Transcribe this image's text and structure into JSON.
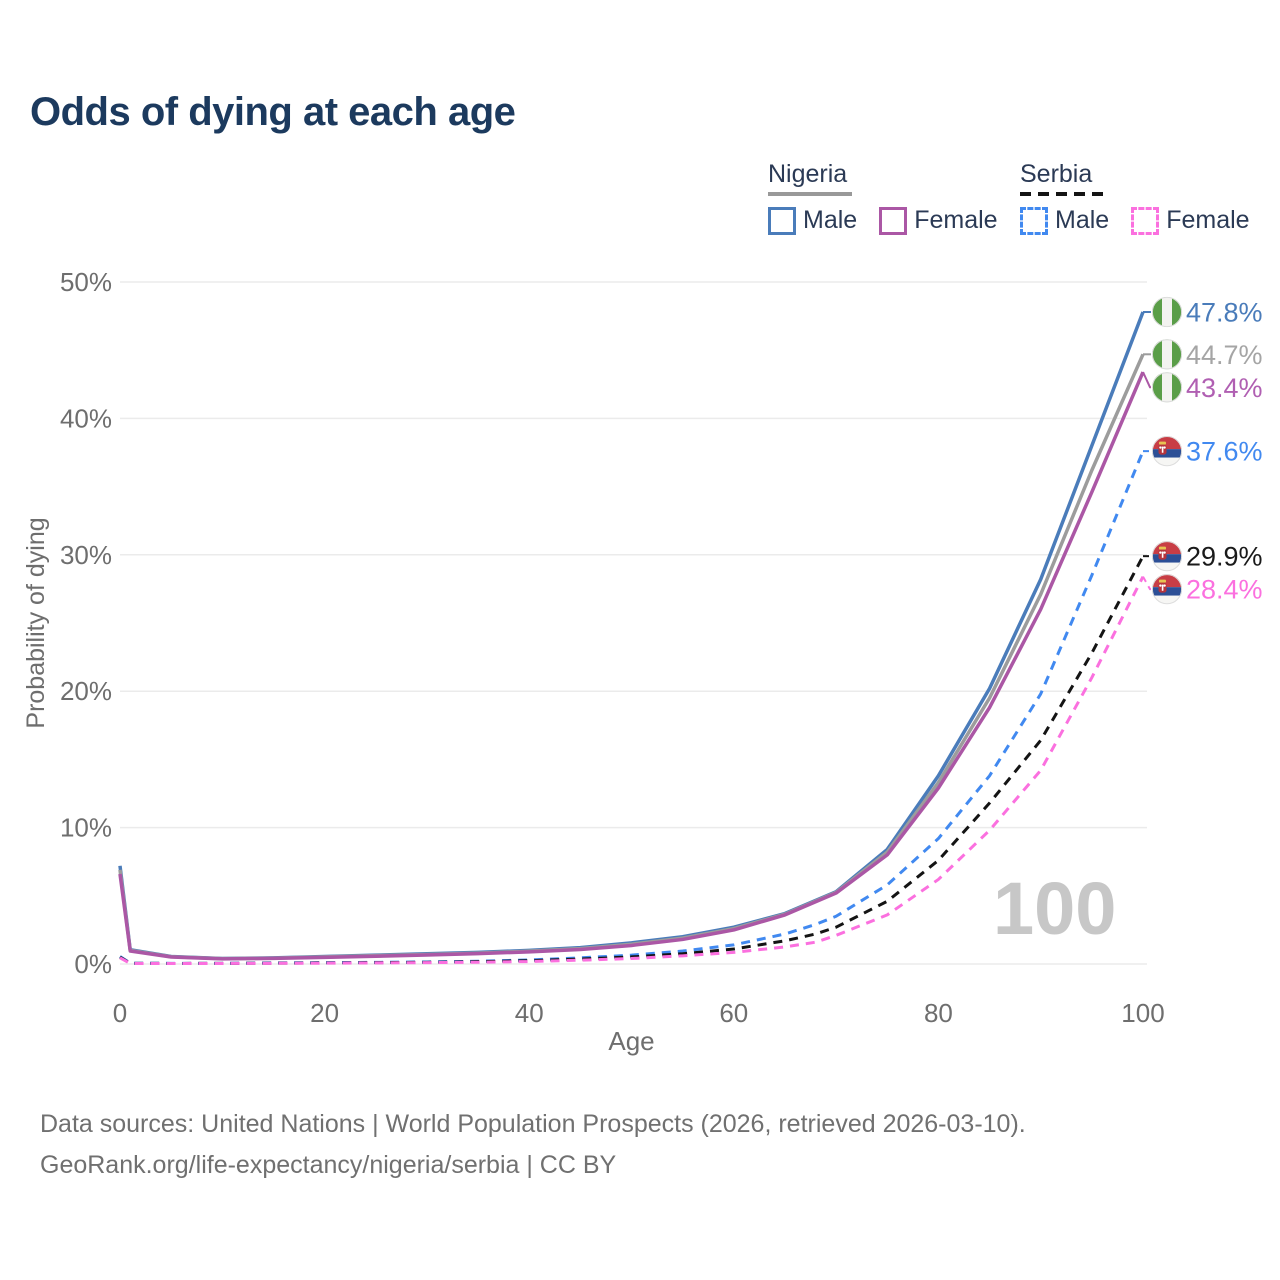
{
  "title": "Odds of dying at each age",
  "watermark_age": "100",
  "legend": {
    "groups": [
      {
        "label": "Nigeria",
        "line_style": "solid",
        "swatch_color": "#999999",
        "items": [
          {
            "label": "Male",
            "color": "#4a7cba",
            "dashed": false
          },
          {
            "label": "Female",
            "color": "#ab57a5",
            "dashed": false
          }
        ]
      },
      {
        "label": "Serbia",
        "line_style": "dashed",
        "swatch_color": "#141414",
        "items": [
          {
            "label": "Male",
            "color": "#4189f0",
            "dashed": true
          },
          {
            "label": "Female",
            "color": "#fb70df",
            "dashed": true
          }
        ]
      }
    ]
  },
  "chart_data": {
    "type": "line",
    "title": "Odds of dying at each age",
    "xlabel": "Age",
    "ylabel": "Probability of dying",
    "xlim": [
      0,
      100
    ],
    "ylim": [
      0,
      50
    ],
    "grid": true,
    "legend_position": "top-right",
    "x_ticks": [
      "0",
      "20",
      "40",
      "60",
      "80",
      "100"
    ],
    "y_ticks": [
      "0%",
      "10%",
      "20%",
      "30%",
      "40%",
      "50%"
    ],
    "series": [
      {
        "name": "Nigeria Male",
        "country": "nigeria",
        "sex": "male",
        "color": "#4a7cba",
        "label_color": "#4a7cba",
        "dashed": false,
        "end_label": "47.8%",
        "points": [
          [
            0,
            7.2
          ],
          [
            1,
            1.05
          ],
          [
            5,
            0.55
          ],
          [
            10,
            0.4
          ],
          [
            15,
            0.45
          ],
          [
            20,
            0.55
          ],
          [
            25,
            0.65
          ],
          [
            30,
            0.75
          ],
          [
            35,
            0.85
          ],
          [
            40,
            1.0
          ],
          [
            45,
            1.2
          ],
          [
            50,
            1.55
          ],
          [
            55,
            2.0
          ],
          [
            60,
            2.7
          ],
          [
            65,
            3.7
          ],
          [
            70,
            5.3
          ],
          [
            75,
            8.4
          ],
          [
            80,
            13.8
          ],
          [
            85,
            20.2
          ],
          [
            90,
            28.2
          ],
          [
            95,
            38.0
          ],
          [
            100,
            47.8
          ]
        ]
      },
      {
        "name": "Nigeria Both sexes",
        "country": "nigeria",
        "sex": "both",
        "color": "#9c9c9c",
        "label_color": "#a5a5a5",
        "dashed": false,
        "end_label": "44.7%",
        "points": [
          [
            0,
            6.9
          ],
          [
            1,
            1.0
          ],
          [
            5,
            0.53
          ],
          [
            10,
            0.39
          ],
          [
            15,
            0.43
          ],
          [
            20,
            0.52
          ],
          [
            25,
            0.61
          ],
          [
            30,
            0.7
          ],
          [
            35,
            0.8
          ],
          [
            40,
            0.94
          ],
          [
            45,
            1.13
          ],
          [
            50,
            1.45
          ],
          [
            55,
            1.9
          ],
          [
            60,
            2.6
          ],
          [
            65,
            3.65
          ],
          [
            70,
            5.25
          ],
          [
            75,
            8.2
          ],
          [
            80,
            13.3
          ],
          [
            85,
            19.5
          ],
          [
            90,
            27.1
          ],
          [
            95,
            36.2
          ],
          [
            100,
            44.7
          ]
        ]
      },
      {
        "name": "Nigeria Female",
        "country": "nigeria",
        "sex": "female",
        "color": "#ab57a5",
        "label_color": "#b05fb2",
        "dashed": false,
        "end_label": "43.4%",
        "points": [
          [
            0,
            6.6
          ],
          [
            1,
            0.95
          ],
          [
            5,
            0.51
          ],
          [
            10,
            0.38
          ],
          [
            15,
            0.41
          ],
          [
            20,
            0.49
          ],
          [
            25,
            0.57
          ],
          [
            30,
            0.66
          ],
          [
            35,
            0.76
          ],
          [
            40,
            0.89
          ],
          [
            45,
            1.06
          ],
          [
            50,
            1.36
          ],
          [
            55,
            1.8
          ],
          [
            60,
            2.5
          ],
          [
            65,
            3.6
          ],
          [
            70,
            5.2
          ],
          [
            75,
            8.0
          ],
          [
            80,
            12.9
          ],
          [
            85,
            18.8
          ],
          [
            90,
            26.0
          ],
          [
            95,
            34.6
          ],
          [
            100,
            43.4
          ]
        ]
      },
      {
        "name": "Serbia Male",
        "country": "serbia",
        "sex": "male",
        "color": "#4189f0",
        "label_color": "#4189f0",
        "dashed": true,
        "end_label": "37.6%",
        "points": [
          [
            0,
            0.55
          ],
          [
            1,
            0.06
          ],
          [
            5,
            0.05
          ],
          [
            10,
            0.05
          ],
          [
            15,
            0.08
          ],
          [
            20,
            0.1
          ],
          [
            25,
            0.12
          ],
          [
            30,
            0.15
          ],
          [
            35,
            0.2
          ],
          [
            40,
            0.3
          ],
          [
            45,
            0.45
          ],
          [
            50,
            0.65
          ],
          [
            55,
            0.95
          ],
          [
            60,
            1.4
          ],
          [
            65,
            2.2
          ],
          [
            68,
            2.9
          ],
          [
            70,
            3.5
          ],
          [
            75,
            5.8
          ],
          [
            80,
            9.2
          ],
          [
            85,
            13.8
          ],
          [
            90,
            19.8
          ],
          [
            95,
            28.5
          ],
          [
            100,
            37.6
          ]
        ]
      },
      {
        "name": "Serbia Both sexes",
        "country": "serbia",
        "sex": "both",
        "color": "#141414",
        "label_color": "#1a1a1a",
        "dashed": true,
        "end_label": "29.9%",
        "points": [
          [
            0,
            0.5
          ],
          [
            1,
            0.05
          ],
          [
            5,
            0.04
          ],
          [
            10,
            0.045
          ],
          [
            15,
            0.06
          ],
          [
            20,
            0.08
          ],
          [
            25,
            0.1
          ],
          [
            30,
            0.12
          ],
          [
            35,
            0.17
          ],
          [
            40,
            0.24
          ],
          [
            45,
            0.36
          ],
          [
            50,
            0.52
          ],
          [
            55,
            0.75
          ],
          [
            60,
            1.1
          ],
          [
            65,
            1.7
          ],
          [
            68,
            2.2
          ],
          [
            70,
            2.7
          ],
          [
            75,
            4.6
          ],
          [
            80,
            7.6
          ],
          [
            85,
            11.8
          ],
          [
            90,
            16.4
          ],
          [
            95,
            22.8
          ],
          [
            100,
            29.9
          ]
        ]
      },
      {
        "name": "Serbia Female",
        "country": "serbia",
        "sex": "female",
        "color": "#fb70df",
        "label_color": "#fb70df",
        "dashed": true,
        "end_label": "28.4%",
        "points": [
          [
            0,
            0.45
          ],
          [
            1,
            0.04
          ],
          [
            5,
            0.035
          ],
          [
            10,
            0.04
          ],
          [
            15,
            0.05
          ],
          [
            20,
            0.06
          ],
          [
            25,
            0.08
          ],
          [
            30,
            0.1
          ],
          [
            35,
            0.13
          ],
          [
            40,
            0.18
          ],
          [
            45,
            0.28
          ],
          [
            50,
            0.4
          ],
          [
            55,
            0.6
          ],
          [
            60,
            0.85
          ],
          [
            65,
            1.25
          ],
          [
            68,
            1.6
          ],
          [
            70,
            2.1
          ],
          [
            75,
            3.6
          ],
          [
            80,
            6.2
          ],
          [
            85,
            9.8
          ],
          [
            90,
            14.2
          ],
          [
            95,
            21.0
          ],
          [
            100,
            28.4
          ]
        ]
      }
    ]
  },
  "footer": {
    "line1": "Data sources: United Nations | World Population Prospects (2026, retrieved 2026-03-10).",
    "line2": "GeoRank.org/life-expectancy/nigeria/serbia | CC BY"
  },
  "colors": {
    "title_text": "#1c3a5e",
    "axis_text": "#6e6e6e",
    "gridline": "#ebebeb",
    "watermark": "#c7c7c7",
    "nigeria_flag_green": "#5a9e48",
    "serbia_flag_red": "#c83d45",
    "serbia_flag_blue": "#2c4f96"
  }
}
